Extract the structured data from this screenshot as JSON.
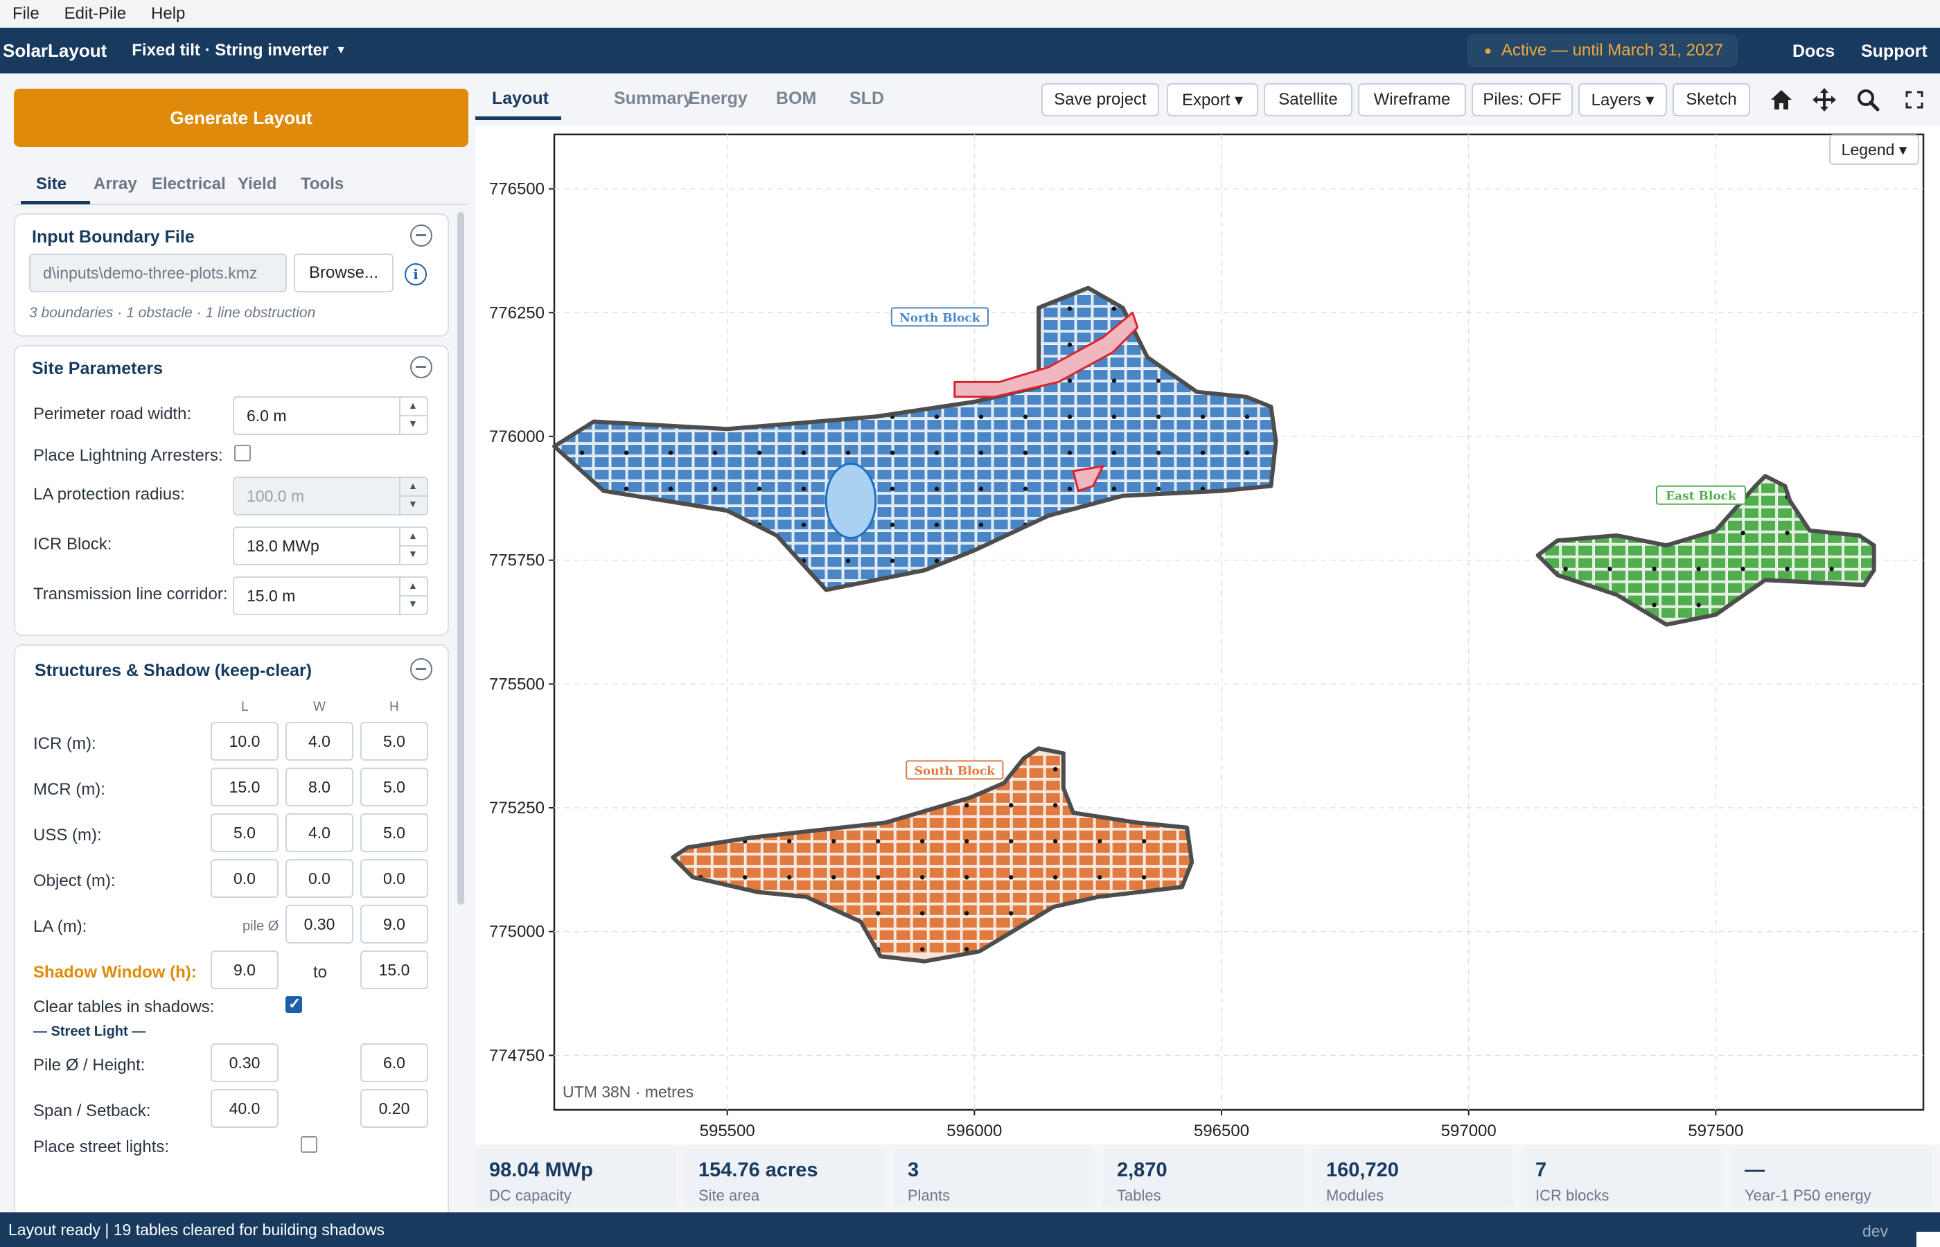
{
  "menu": {
    "file": "File",
    "edit_pile": "Edit-Pile",
    "help": "Help"
  },
  "titlebar": {
    "app_name": "SolarLayout",
    "mode": "Fixed tilt · String inverter",
    "license": "Active — until March 31, 2027",
    "docs": "Docs",
    "support": "Support"
  },
  "sidebar": {
    "generate_label": "Generate Layout",
    "tabs": [
      "Site",
      "Array",
      "Electrical",
      "Yield",
      "Tools"
    ],
    "boundary": {
      "title": "Input Boundary File",
      "file": "d\\inputs\\demo-three-plots.kmz",
      "browse": "Browse...",
      "info": "3 boundaries · 1 obstacle · 1 line obstruction"
    },
    "site_params": {
      "title": "Site Parameters",
      "road_label": "Perimeter road width:",
      "road_value": "6.0  m",
      "la_label": "Place Lightning Arresters:",
      "la_radius_label": "LA protection radius:",
      "la_radius_value": "100.0  m",
      "icr_label": "ICR Block:",
      "icr_value": "18.0  MWp",
      "tl_label": "Transmission line corridor:",
      "tl_value": "15.0  m"
    },
    "structures": {
      "title": "Structures & Shadow (keep-clear)",
      "col_l": "L",
      "col_w": "W",
      "col_h": "H",
      "icr_label": "ICR (m):",
      "icr": [
        "10.0",
        "4.0",
        "5.0"
      ],
      "mcr_label": "MCR (m):",
      "mcr": [
        "15.0",
        "8.0",
        "5.0"
      ],
      "uss_label": "USS (m):",
      "uss": [
        "5.0",
        "4.0",
        "5.0"
      ],
      "object_label": "Object (m):",
      "object": [
        "0.0",
        "0.0",
        "0.0"
      ],
      "la_label": "LA (m):",
      "la_pile": "pile Ø",
      "la": [
        "0.30",
        "9.0"
      ],
      "shadow_label": "Shadow Window (h):",
      "shadow_from": "9.0",
      "shadow_to_word": "to",
      "shadow_to": "15.0",
      "clear_label": "Clear tables in shadows:",
      "clear_checked": true,
      "street_header": "— Street Light —",
      "pile_label": "Pile Ø / Height:",
      "pile": [
        "0.30",
        "6.0"
      ],
      "span_label": "Span / Setback:",
      "span": [
        "40.0",
        "0.20"
      ],
      "place_label": "Place street lights:",
      "place_checked": false
    }
  },
  "main_tabs": [
    "Layout",
    "Summary",
    "Energy",
    "BOM",
    "SLD"
  ],
  "toolbar": {
    "save": "Save project",
    "export": "Export ▾",
    "satellite": "Satellite",
    "wireframe": "Wireframe",
    "piles": "Piles: OFF",
    "layers": "Layers ▾",
    "sketch": "Sketch",
    "legend": "Legend ▾"
  },
  "icons": {
    "home": "home-icon",
    "pan": "move-icon",
    "zoom": "search-icon",
    "fullscreen": "fullscreen-icon"
  },
  "chart_data": {
    "type": "map",
    "crs_label": "UTM 38N · metres",
    "xlim": [
      595150,
      597920
    ],
    "ylim": [
      774640,
      776610
    ],
    "xticks": [
      595500,
      596000,
      596500,
      597000,
      597500
    ],
    "yticks": [
      774750,
      775000,
      775250,
      775500,
      775750,
      776000,
      776250,
      776500
    ],
    "tick_labels": {
      "x": [
        "595500",
        "596000",
        "596500",
        "597000",
        "597500"
      ],
      "y": [
        "774750",
        "775000",
        "775250",
        "775500",
        "775750",
        "776000",
        "776250",
        "776500"
      ]
    },
    "blocks": [
      {
        "name": "North Block",
        "fill": "#4a86c5",
        "halo": "#dbe7f3",
        "label_pos": [
          595930,
          776240
        ],
        "outline": [
          [
            595150,
            775980
          ],
          [
            595230,
            776030
          ],
          [
            595500,
            776015
          ],
          [
            595800,
            776040
          ],
          [
            596000,
            776070
          ],
          [
            596130,
            776100
          ],
          [
            596130,
            776170
          ],
          [
            596130,
            776260
          ],
          [
            596230,
            776300
          ],
          [
            596300,
            776260
          ],
          [
            596350,
            776160
          ],
          [
            596450,
            776090
          ],
          [
            596550,
            776080
          ],
          [
            596600,
            776060
          ],
          [
            596610,
            775990
          ],
          [
            596600,
            775900
          ],
          [
            596500,
            775890
          ],
          [
            596300,
            775880
          ],
          [
            596150,
            775840
          ],
          [
            596000,
            775770
          ],
          [
            595900,
            775730
          ],
          [
            595700,
            775690
          ],
          [
            595600,
            775800
          ],
          [
            595500,
            775850
          ],
          [
            595250,
            775890
          ]
        ]
      },
      {
        "name": "East Block",
        "fill": "#52ad4e",
        "halo": "#dcefdb",
        "label_pos": [
          597470,
          775880
        ],
        "outline": [
          [
            597140,
            775760
          ],
          [
            597180,
            775720
          ],
          [
            597300,
            775680
          ],
          [
            597400,
            775620
          ],
          [
            597500,
            775640
          ],
          [
            597600,
            775710
          ],
          [
            597800,
            775700
          ],
          [
            597820,
            775730
          ],
          [
            597820,
            775780
          ],
          [
            597790,
            775800
          ],
          [
            597690,
            775810
          ],
          [
            597650,
            775870
          ],
          [
            597640,
            775900
          ],
          [
            597600,
            775920
          ],
          [
            597580,
            775900
          ],
          [
            597500,
            775810
          ],
          [
            597400,
            775780
          ],
          [
            597300,
            775800
          ],
          [
            597180,
            775790
          ]
        ]
      },
      {
        "name": "South Block",
        "fill": "#e07a3f",
        "halo": "#f7e4d9",
        "label_pos": [
          595960,
          775325
        ],
        "outline": [
          [
            595390,
            775150
          ],
          [
            595430,
            775110
          ],
          [
            595560,
            775080
          ],
          [
            595660,
            775070
          ],
          [
            595770,
            775020
          ],
          [
            595810,
            774950
          ],
          [
            595900,
            774940
          ],
          [
            596010,
            774960
          ],
          [
            596160,
            775050
          ],
          [
            596250,
            775070
          ],
          [
            596420,
            775090
          ],
          [
            596440,
            775140
          ],
          [
            596430,
            775210
          ],
          [
            596330,
            775220
          ],
          [
            596200,
            775240
          ],
          [
            596180,
            775290
          ],
          [
            596180,
            775360
          ],
          [
            596130,
            775370
          ],
          [
            596100,
            775350
          ],
          [
            596060,
            775300
          ],
          [
            595990,
            775270
          ],
          [
            595820,
            775220
          ],
          [
            595550,
            775190
          ],
          [
            595420,
            775170
          ]
        ]
      }
    ],
    "obstacles": {
      "water": {
        "center": [
          595750,
          775870
        ],
        "rx": 50,
        "ry": 75
      },
      "line_obstruction": [
        [
          595960,
          776110
        ],
        [
          596050,
          776110
        ],
        [
          596150,
          776140
        ],
        [
          596260,
          776200
        ],
        [
          596320,
          776250
        ],
        [
          596330,
          776220
        ],
        [
          596280,
          776170
        ],
        [
          596170,
          776110
        ],
        [
          596040,
          776080
        ],
        [
          595960,
          776080
        ]
      ],
      "small": [
        [
          596200,
          775930
        ],
        [
          596260,
          775940
        ],
        [
          596240,
          775900
        ],
        [
          596210,
          775890
        ]
      ]
    }
  },
  "kpis": [
    {
      "value": "98.04 MWp",
      "label": "DC capacity"
    },
    {
      "value": "154.76 acres",
      "label": "Site area"
    },
    {
      "value": "3",
      "label": "Plants"
    },
    {
      "value": "2,870",
      "label": "Tables"
    },
    {
      "value": "160,720",
      "label": "Modules"
    },
    {
      "value": "7",
      "label": "ICR blocks"
    },
    {
      "value": "—",
      "label": "Year-1 P50 energy"
    }
  ],
  "status": {
    "message": "Layout ready | 19 tables cleared for building shadows",
    "env": "dev"
  }
}
